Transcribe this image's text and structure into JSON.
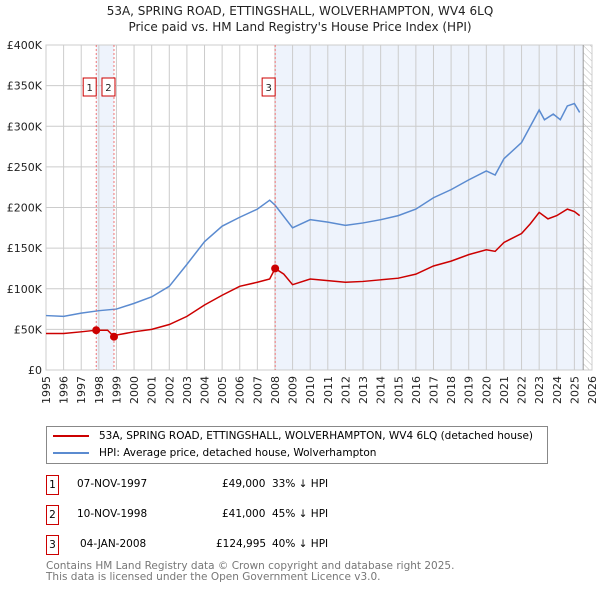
{
  "chart_data": {
    "type": "line",
    "title": "53A, SPRING ROAD, ETTINGSHALL, WOLVERHAMPTON, WV4 6LQ",
    "subtitle": "Price paid vs. HM Land Registry's House Price Index (HPI)",
    "xlim": [
      1995,
      2026
    ],
    "ylim": [
      0,
      400000
    ],
    "y_ticks": [
      0,
      50000,
      100000,
      150000,
      200000,
      250000,
      300000,
      350000,
      400000
    ],
    "y_tick_labels": [
      "£0",
      "£50K",
      "£100K",
      "£150K",
      "£200K",
      "£250K",
      "£300K",
      "£350K",
      "£400K"
    ],
    "x_tick_labels": [
      "1995",
      "1996",
      "1997",
      "1998",
      "1999",
      "2000",
      "2001",
      "2002",
      "2003",
      "2004",
      "2005",
      "2006",
      "2007",
      "2008",
      "2009",
      "2010",
      "2011",
      "2012",
      "2013",
      "2014",
      "2015",
      "2016",
      "2017",
      "2018",
      "2019",
      "2020",
      "2021",
      "2022",
      "2023",
      "2024",
      "2025",
      "2026"
    ],
    "grid": true,
    "series": [
      {
        "name": "53A, SPRING ROAD, ETTINGSHALL, WOLVERHAMPTON, WV4 6LQ (detached house)",
        "color": "#cc0000",
        "x": [
          1995,
          1996,
          1997,
          1997.85,
          1998.5,
          1998.86,
          1999,
          2000,
          2001,
          2002,
          2003,
          2004,
          2005,
          2006,
          2007,
          2007.7,
          2008.01,
          2008.5,
          2009,
          2010,
          2011,
          2012,
          2013,
          2014,
          2015,
          2016,
          2017,
          2018,
          2019,
          2020,
          2020.5,
          2021,
          2022,
          2022.5,
          2023,
          2023.5,
          2024,
          2024.6,
          2025,
          2025.3
        ],
        "y": [
          45000,
          45000,
          47000,
          49000,
          49000,
          41000,
          43000,
          47000,
          50000,
          56000,
          66000,
          80000,
          92000,
          103000,
          108000,
          112000,
          124995,
          118000,
          105000,
          112000,
          110000,
          108000,
          109000,
          111000,
          113000,
          118000,
          128000,
          134000,
          142000,
          148000,
          146000,
          157000,
          168000,
          180000,
          194000,
          186000,
          190000,
          198000,
          195000,
          190000
        ]
      },
      {
        "name": "HPI: Average price, detached house, Wolverhampton",
        "color": "#5b8bd0",
        "x": [
          1995,
          1996,
          1997,
          1998,
          1999,
          2000,
          2001,
          2002,
          2003,
          2004,
          2005,
          2006,
          2007,
          2007.7,
          2008,
          2009,
          2010,
          2011,
          2012,
          2013,
          2014,
          2015,
          2016,
          2017,
          2018,
          2019,
          2020,
          2020.5,
          2021,
          2022,
          2022.5,
          2023,
          2023.3,
          2023.8,
          2024.2,
          2024.6,
          2025,
          2025.3
        ],
        "y": [
          67000,
          66000,
          70000,
          73000,
          75000,
          82000,
          90000,
          103000,
          130000,
          158000,
          177000,
          188000,
          198000,
          209000,
          203000,
          175000,
          185000,
          182000,
          178000,
          181000,
          185000,
          190000,
          198000,
          212000,
          222000,
          234000,
          245000,
          240000,
          260000,
          280000,
          300000,
          320000,
          308000,
          315000,
          308000,
          325000,
          328000,
          317000
        ]
      }
    ],
    "sales": [
      {
        "label": "1",
        "x": 1997.85,
        "date": "07-NOV-1997",
        "price": "£49,000",
        "hpi": "33% ↓ HPI"
      },
      {
        "label": "2",
        "x": 1998.86,
        "date": "10-NOV-1998",
        "price": "£41,000",
        "hpi": "45% ↓ HPI"
      },
      {
        "label": "3",
        "x": 2008.01,
        "date": "04-JAN-2008",
        "price": "£124,995",
        "hpi": "40% ↓ HPI"
      }
    ],
    "sale_values": [
      49000,
      41000,
      124995
    ]
  },
  "footer": [
    "Contains HM Land Registry data © Crown copyright and database right 2025.",
    "This data is licensed under the Open Government Licence v3.0."
  ]
}
